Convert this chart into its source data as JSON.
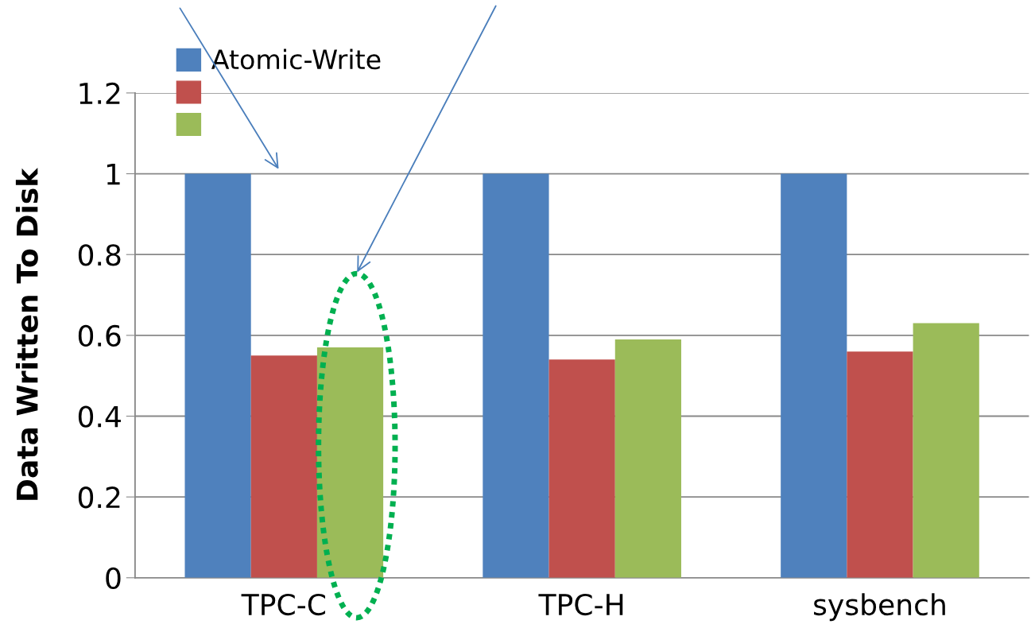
{
  "chart_data": {
    "type": "bar",
    "ylabel": "Data Written To Disk",
    "categories": [
      "TPC-C",
      "TPC-H",
      "sysbench"
    ],
    "series": [
      {
        "name": "Atomic-Write",
        "color": "#4f81bd",
        "values": [
          1,
          1,
          1
        ]
      },
      {
        "color": "#c0504d",
        "values": [
          0.55,
          0.54,
          0.56
        ]
      },
      {
        "color": "#9bbb59",
        "values": [
          0.57,
          0.59,
          0.63
        ]
      }
    ],
    "ylim": [
      0,
      1.2
    ],
    "yticks": [
      0,
      0.2,
      0.4,
      0.6,
      0.8,
      1,
      1.2
    ],
    "grid": "y",
    "legend": "top left"
  }
}
